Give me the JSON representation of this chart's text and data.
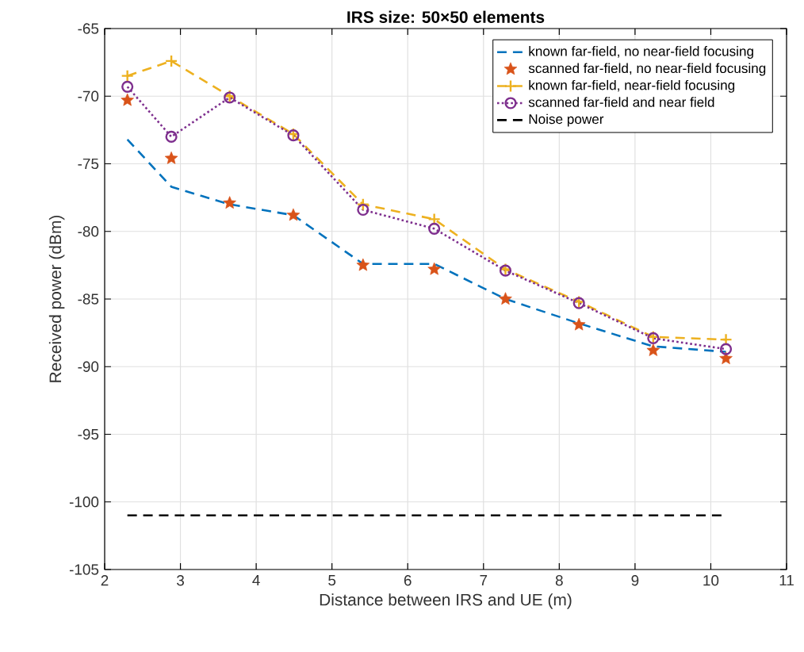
{
  "chart_data": {
    "type": "line",
    "title": "**IRS size: 50×50 elements**",
    "xlabel": "Distance between IRS and UE (m)",
    "ylabel": "Received power (dBm)",
    "x": [
      2.3,
      2.88,
      3.65,
      4.49,
      5.41,
      6.35,
      7.29,
      8.26,
      9.24,
      10.2
    ],
    "series": [
      {
        "name": "known far-field, no near-field focusing",
        "color": "#0072bd",
        "line_style": "dashed",
        "marker": "none",
        "values": [
          -73.2,
          -76.7,
          -78.0,
          -78.8,
          -82.4,
          -82.4,
          -85.0,
          -86.8,
          -88.5,
          -88.9
        ]
      },
      {
        "name": "scanned far-field, no near-field focusing",
        "color": "#d95319",
        "type": "scatter",
        "marker": "star",
        "values": [
          -70.3,
          -74.6,
          -77.9,
          -78.8,
          -82.5,
          -82.8,
          -85.0,
          -86.9,
          -88.8,
          -89.4
        ]
      },
      {
        "name": "known far-field, near-field focusing",
        "color": "#edb120",
        "line_style": "dashed",
        "marker": "cross",
        "values": [
          -68.5,
          -67.4,
          -70.0,
          -72.8,
          -78.0,
          -79.1,
          -82.8,
          -85.2,
          -87.8,
          -88.0
        ]
      },
      {
        "name": "scanned far-field and near field",
        "color": "#7e2f8e",
        "line_style": "dotted",
        "marker": "circle",
        "values": [
          -69.3,
          -73.0,
          -70.1,
          -72.9,
          -78.4,
          -79.8,
          -82.9,
          -85.3,
          -87.9,
          -88.7
        ]
      },
      {
        "name": "Noise power",
        "color": "#000000",
        "line_style": "dashed",
        "marker": "none",
        "values": [
          -101,
          -101,
          -101,
          -101,
          -101,
          -101,
          -101,
          -101,
          -101,
          -101
        ]
      }
    ],
    "xlim": [
      2,
      11
    ],
    "xticks": [
      2,
      3,
      4,
      5,
      6,
      7,
      8,
      9,
      10,
      11
    ],
    "ylim": [
      -105,
      -65
    ],
    "yticks": [
      -105,
      -100,
      -95,
      -90,
      -85,
      -80,
      -75,
      -70,
      -65
    ],
    "grid": true,
    "legend": "top right"
  }
}
